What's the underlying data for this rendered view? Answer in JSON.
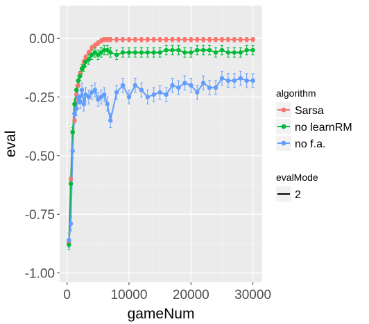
{
  "chart_data": {
    "type": "line",
    "title": "",
    "xlabel": "gameNum",
    "ylabel": "eval",
    "xlim": [
      -1200,
      31500
    ],
    "ylim": [
      -1.04,
      0.14
    ],
    "x_ticks": [
      0,
      10000,
      20000,
      30000
    ],
    "x_tick_labels": [
      "0",
      "10000",
      "20000",
      "30000"
    ],
    "y_ticks": [
      0.0,
      -0.25,
      -0.5,
      -0.75,
      -1.0
    ],
    "y_tick_labels": [
      "0.00",
      "-0.25",
      "-0.50",
      "-0.75",
      "-1.00"
    ],
    "grid": true,
    "error_bars": true,
    "legend_placement": "right",
    "legend_algorithm": {
      "title": "algorithm",
      "entries": [
        {
          "name": "Sarsa",
          "color": "#F8766D"
        },
        {
          "name": "no learnRM",
          "color": "#00BA38"
        },
        {
          "name": "no f.a.",
          "color": "#619CFF"
        }
      ]
    },
    "legend_evalMode": {
      "title": "evalMode",
      "entries": [
        {
          "name": "2",
          "color": "#000000"
        }
      ]
    },
    "x": [
      300,
      600,
      900,
      1200,
      1500,
      1800,
      2100,
      2400,
      2700,
      3000,
      3500,
      4000,
      4500,
      5000,
      5500,
      6000,
      6500,
      7000,
      8000,
      9000,
      10000,
      11000,
      12000,
      13000,
      14000,
      15000,
      16000,
      17000,
      18000,
      19000,
      20000,
      21000,
      22000,
      23000,
      24000,
      25000,
      26000,
      27000,
      28000,
      29000,
      30000
    ],
    "series": [
      {
        "name": "Sarsa",
        "color": "#F8766D",
        "values": [
          -0.87,
          -0.6,
          -0.4,
          -0.35,
          -0.24,
          -0.2,
          -0.15,
          -0.13,
          -0.1,
          -0.08,
          -0.06,
          -0.04,
          -0.03,
          -0.02,
          -0.01,
          -0.005,
          -0.005,
          -0.005,
          -0.005,
          -0.005,
          -0.005,
          -0.005,
          -0.005,
          -0.005,
          -0.005,
          -0.005,
          -0.005,
          -0.005,
          -0.005,
          -0.005,
          -0.005,
          -0.005,
          -0.005,
          -0.005,
          -0.005,
          -0.005,
          -0.005,
          -0.005,
          -0.005,
          -0.005,
          -0.005
        ],
        "errors": [
          0.01,
          0.01,
          0.01,
          0.01,
          0.01,
          0.01,
          0.01,
          0.01,
          0.01,
          0.01,
          0.01,
          0.01,
          0.01,
          0.01,
          0.01,
          0.01,
          0.01,
          0.01,
          0.01,
          0.01,
          0.01,
          0.01,
          0.01,
          0.01,
          0.01,
          0.01,
          0.01,
          0.01,
          0.01,
          0.01,
          0.01,
          0.01,
          0.01,
          0.01,
          0.01,
          0.01,
          0.01,
          0.01,
          0.01,
          0.01,
          0.01
        ]
      },
      {
        "name": "no learnRM",
        "color": "#00BA38",
        "values": [
          -0.88,
          -0.62,
          -0.4,
          -0.28,
          -0.22,
          -0.18,
          -0.16,
          -0.13,
          -0.12,
          -0.1,
          -0.09,
          -0.07,
          -0.06,
          -0.07,
          -0.06,
          -0.05,
          -0.05,
          -0.06,
          -0.07,
          -0.06,
          -0.06,
          -0.06,
          -0.06,
          -0.06,
          -0.06,
          -0.06,
          -0.05,
          -0.05,
          -0.05,
          -0.06,
          -0.06,
          -0.05,
          -0.05,
          -0.05,
          -0.06,
          -0.05,
          -0.06,
          -0.06,
          -0.06,
          -0.05,
          -0.05
        ],
        "errors": [
          0.02,
          0.02,
          0.02,
          0.02,
          0.02,
          0.02,
          0.02,
          0.02,
          0.02,
          0.02,
          0.02,
          0.02,
          0.02,
          0.02,
          0.02,
          0.02,
          0.02,
          0.02,
          0.02,
          0.02,
          0.02,
          0.02,
          0.02,
          0.02,
          0.02,
          0.02,
          0.02,
          0.02,
          0.02,
          0.02,
          0.02,
          0.02,
          0.02,
          0.02,
          0.02,
          0.02,
          0.02,
          0.02,
          0.02,
          0.02,
          0.02
        ]
      },
      {
        "name": "no f.a.",
        "color": "#619CFF",
        "values": [
          -0.86,
          -0.79,
          -0.48,
          -0.32,
          -0.3,
          -0.25,
          -0.27,
          -0.22,
          -0.28,
          -0.24,
          -0.25,
          -0.23,
          -0.22,
          -0.26,
          -0.25,
          -0.24,
          -0.28,
          -0.35,
          -0.23,
          -0.2,
          -0.25,
          -0.2,
          -0.22,
          -0.25,
          -0.24,
          -0.23,
          -0.24,
          -0.2,
          -0.21,
          -0.19,
          -0.2,
          -0.23,
          -0.19,
          -0.21,
          -0.21,
          -0.17,
          -0.18,
          -0.18,
          -0.17,
          -0.18,
          -0.18
        ],
        "errors": [
          0.03,
          0.03,
          0.03,
          0.03,
          0.03,
          0.03,
          0.03,
          0.03,
          0.03,
          0.03,
          0.03,
          0.03,
          0.03,
          0.03,
          0.03,
          0.03,
          0.03,
          0.03,
          0.03,
          0.03,
          0.03,
          0.03,
          0.03,
          0.03,
          0.03,
          0.03,
          0.03,
          0.03,
          0.03,
          0.03,
          0.03,
          0.03,
          0.03,
          0.03,
          0.03,
          0.03,
          0.03,
          0.03,
          0.03,
          0.03,
          0.03
        ]
      }
    ]
  }
}
